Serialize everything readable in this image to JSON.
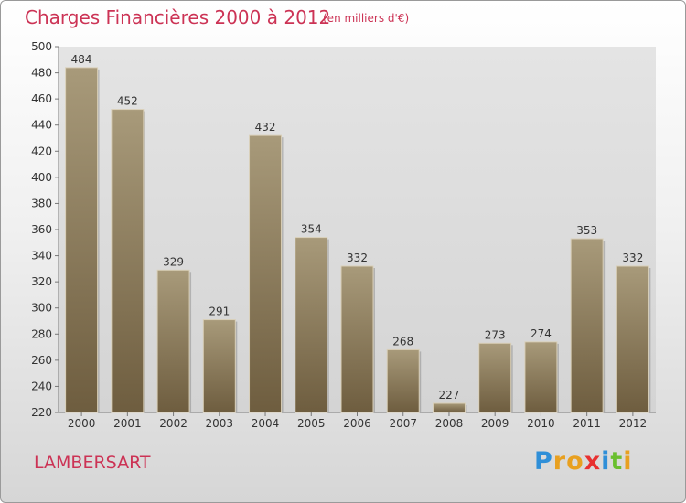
{
  "title": "Charges Financières 2000 à 2012",
  "subtitle": "(en milliers d'€)",
  "town": "LAMBERSART",
  "logo": {
    "letters": [
      "P",
      "r",
      "o",
      "x",
      "i",
      "t",
      "i"
    ],
    "colors": [
      "#2f8fd8",
      "#e8a020",
      "#e8a020",
      "#e83030",
      "#2f8fd8",
      "#6abf2f",
      "#e8a020"
    ]
  },
  "colors": {
    "bar_top": "#a89a7a",
    "bar_bottom": "#6e5d3f",
    "accent": "#cc3355"
  },
  "chart_data": {
    "type": "bar",
    "title": "Charges Financières 2000 à 2012",
    "categories": [
      "2000",
      "2001",
      "2002",
      "2003",
      "2004",
      "2005",
      "2006",
      "2007",
      "2008",
      "2009",
      "2010",
      "2011",
      "2012"
    ],
    "values": [
      484,
      452,
      329,
      291,
      432,
      354,
      332,
      268,
      227,
      273,
      274,
      353,
      332
    ],
    "yticks": [
      220,
      240,
      260,
      280,
      300,
      320,
      340,
      360,
      380,
      400,
      420,
      440,
      460,
      480,
      500
    ],
    "ylim": [
      220,
      500
    ],
    "grid": false,
    "xlabel": "",
    "ylabel": ""
  }
}
